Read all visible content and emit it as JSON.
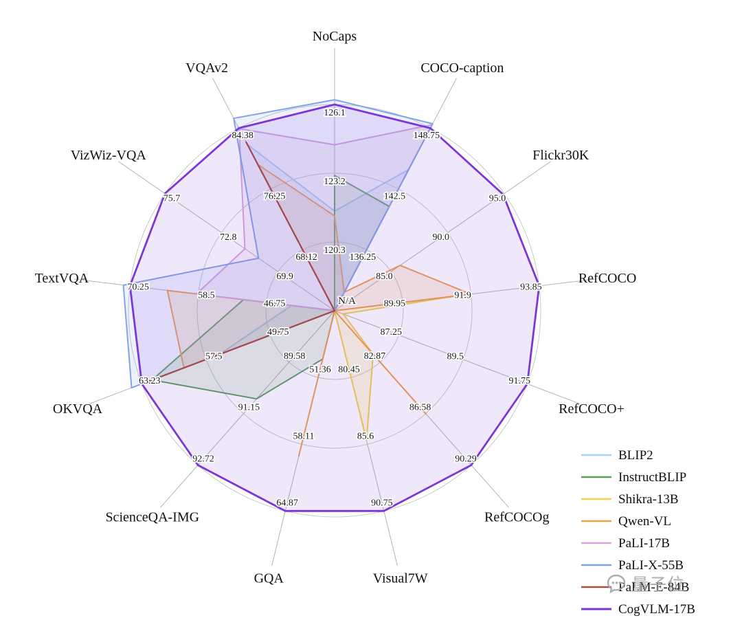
{
  "watermark": {
    "text": "量子位"
  },
  "chart_data": {
    "type": "radar",
    "title": "",
    "center_label": "N/A",
    "grid": true,
    "legend_position": "bottom-right",
    "categories": [
      "NoCaps",
      "COCO-caption",
      "Flickr30K",
      "RefCOCO",
      "RefCOCO+",
      "RefCOCOg",
      "Visual7W",
      "GQA",
      "ScienceQA-IMG",
      "OKVQA",
      "TextVQA",
      "VizWiz-VQA",
      "VQAv2"
    ],
    "axis_ticks": [
      [
        "120.3",
        "123.2",
        "126.1"
      ],
      [
        "136.25",
        "142.5",
        "148.75"
      ],
      [
        "85.0",
        "90.0",
        "95.0"
      ],
      [
        "89.95",
        "91.9",
        "93.85"
      ],
      [
        "87.25",
        "89.5",
        "91.75"
      ],
      [
        "82.87",
        "86.58",
        "90.29"
      ],
      [
        "80.45",
        "85.6",
        "90.75"
      ],
      [
        "51.36",
        "58.11",
        "64.87"
      ],
      [
        "89.58",
        "91.15",
        "92.72"
      ],
      [
        "49.75",
        "57.5",
        "63.23"
      ],
      [
        "46.75",
        "58.5",
        "70.25"
      ],
      [
        "69.9",
        "72.8",
        "75.7"
      ],
      [
        "68.12",
        "76.25",
        "84.38"
      ]
    ],
    "series": [
      {
        "name": "BLIP2",
        "color": "#a9d3f2",
        "stroke_width": 2,
        "fill_opacity": 0.16,
        "values": [
          121.6,
          144.5,
          null,
          null,
          null,
          null,
          null,
          44.6,
          null,
          54.7,
          42.4,
          null,
          82.2
        ]
      },
      {
        "name": "InstructBLIP",
        "color": "#58a05c",
        "stroke_width": 2,
        "fill_opacity": 0.14,
        "values": [
          123.1,
          140.7,
          null,
          null,
          null,
          null,
          null,
          49.5,
          90.7,
          62.1,
          50.7,
          null,
          null
        ]
      },
      {
        "name": "Shikra-13B",
        "color": "#f2d24b",
        "stroke_width": 2,
        "fill_opacity": 0.18,
        "values": [
          null,
          117.5,
          null,
          91.5,
          85.3,
          82.3,
          85.3,
          null,
          null,
          47.2,
          null,
          null,
          77.4
        ]
      },
      {
        "name": "Qwen-VL",
        "color": "#f0a04e",
        "stroke_width": 2,
        "fill_opacity": 0.16,
        "values": [
          121.4,
          131.9,
          85.8,
          91.9,
          null,
          86.6,
          null,
          59.3,
          null,
          58.6,
          63.8,
          null,
          79.5
        ]
      },
      {
        "name": "PaLI-17B",
        "color": "#d9a5dc",
        "stroke_width": 2,
        "fill_opacity": 0.15,
        "values": [
          124.4,
          149.1,
          null,
          null,
          null,
          null,
          null,
          null,
          null,
          null,
          58.8,
          71.6,
          84.3
        ]
      },
      {
        "name": "PaLI-X-55B",
        "color": "#83a3e8",
        "stroke_width": 2,
        "fill_opacity": 0.15,
        "values": [
          126.3,
          149.2,
          null,
          null,
          null,
          null,
          null,
          null,
          null,
          66.1,
          71.4,
          70.9,
          86.0
        ]
      },
      {
        "name": "PaLM-E-84B",
        "color": "#a94a3d",
        "stroke_width": 2.2,
        "fill_opacity": 0.1,
        "values": [
          null,
          null,
          null,
          null,
          null,
          null,
          null,
          null,
          null,
          63.3,
          null,
          null,
          82.5
        ]
      },
      {
        "name": "CogVLM-17B",
        "color": "#7c36d6",
        "stroke_width": 2.8,
        "fill_opacity": 0.12,
        "values": [
          126.1,
          148.75,
          94.9,
          93.85,
          91.75,
          90.29,
          90.75,
          64.87,
          92.72,
          63.23,
          70.25,
          75.7,
          84.38
        ]
      }
    ]
  }
}
